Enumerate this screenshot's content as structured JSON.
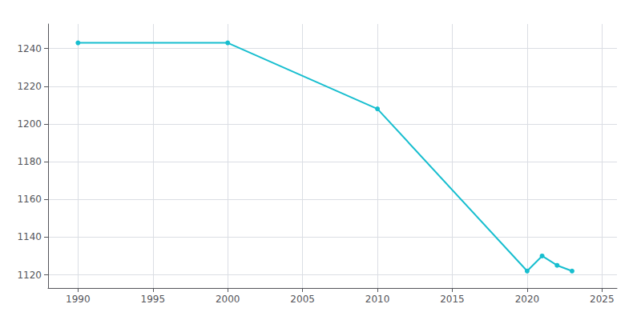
{
  "chart_data": {
    "type": "line",
    "x": [
      1990,
      2000,
      2010,
      2020,
      2021,
      2022,
      2023
    ],
    "values": [
      1243,
      1243,
      1208,
      1122,
      1130,
      1125,
      1122
    ],
    "color": "#17becf",
    "marker": "circle",
    "xlim": [
      1988,
      2026
    ],
    "ylim": [
      1113,
      1253
    ],
    "xticks": [
      1990,
      1995,
      2000,
      2005,
      2010,
      2015,
      2020,
      2025
    ],
    "yticks": [
      1120,
      1140,
      1160,
      1180,
      1200,
      1220,
      1240
    ],
    "grid": true
  }
}
